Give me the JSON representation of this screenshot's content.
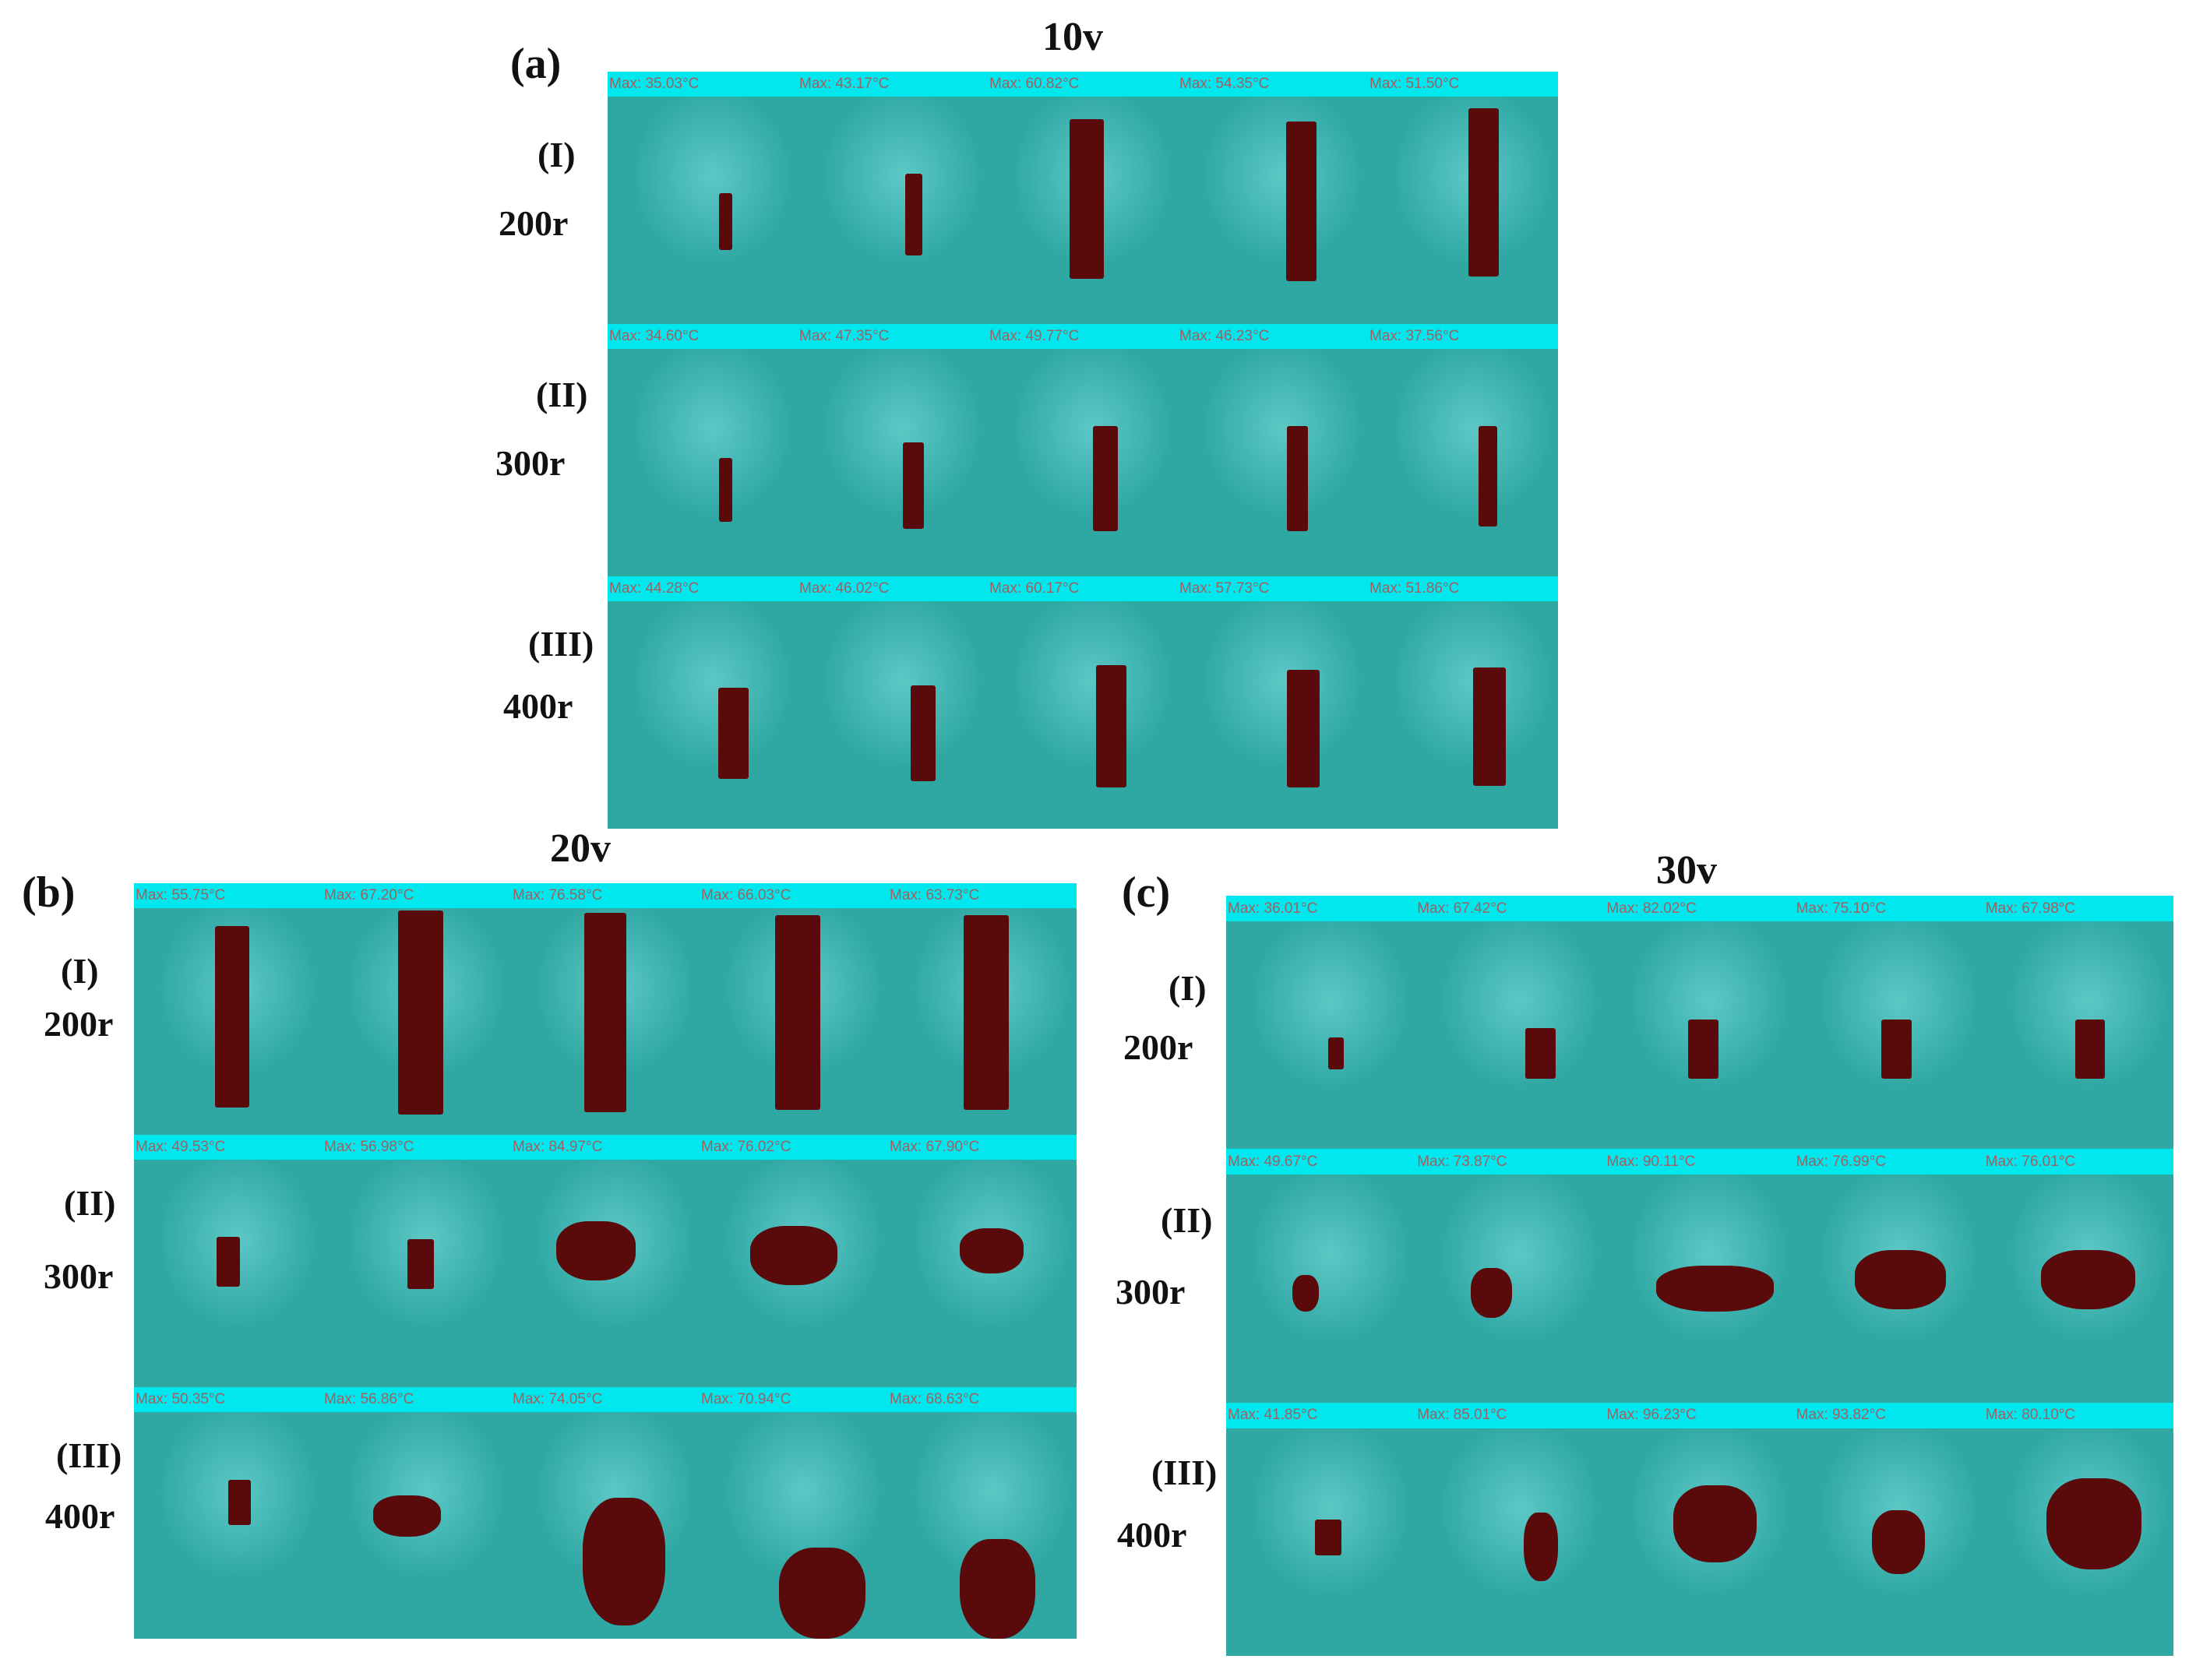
{
  "figure": {
    "panels": [
      {
        "letter": "(a)",
        "voltage": "10v",
        "rows": [
          {
            "roman": "(I)",
            "speed": "200r",
            "max_temps": [
              "Max: 35.03°C",
              "Max: 43.17°C",
              "Max: 60.82°C",
              "Max: 54.35°C",
              "Max: 51.50°C"
            ]
          },
          {
            "roman": "(II)",
            "speed": "300r",
            "max_temps": [
              "Max: 34.60°C",
              "Max: 47.35°C",
              "Max: 49.77°C",
              "Max: 46.23°C",
              "Max: 37.56°C"
            ]
          },
          {
            "roman": "(III)",
            "speed": "400r",
            "max_temps": [
              "Max: 44.28°C",
              "Max: 46.02°C",
              "Max: 60.17°C",
              "Max: 57.73°C",
              "Max: 51.86°C"
            ]
          }
        ]
      },
      {
        "letter": "(b)",
        "voltage": "20v",
        "rows": [
          {
            "roman": "(I)",
            "speed": "200r",
            "max_temps": [
              "Max: 55.75°C",
              "Max: 67.20°C",
              "Max: 76.58°C",
              "Max: 66.03°C",
              "Max: 63.73°C"
            ]
          },
          {
            "roman": "(II)",
            "speed": "300r",
            "max_temps": [
              "Max: 49.53°C",
              "Max: 56.98°C",
              "Max: 84.97°C",
              "Max: 76.02°C",
              "Max: 67.90°C"
            ]
          },
          {
            "roman": "(III)",
            "speed": "400r",
            "max_temps": [
              "Max: 50.35°C",
              "Max: 56.86°C",
              "Max: 74.05°C",
              "Max: 70.94°C",
              "Max: 68.63°C"
            ]
          }
        ]
      },
      {
        "letter": "(c)",
        "voltage": "30v",
        "rows": [
          {
            "roman": "(I)",
            "speed": "200r",
            "max_temps": [
              "Max: 36.01°C",
              "Max: 67.42°C",
              "Max: 82.02°C",
              "Max: 75.10°C",
              "Max: 67.98°C"
            ]
          },
          {
            "roman": "(II)",
            "speed": "300r",
            "max_temps": [
              "Max: 49.67°C",
              "Max: 73.87°C",
              "Max: 90.11°C",
              "Max: 76.99°C",
              "Max: 76.01°C"
            ]
          },
          {
            "roman": "(III)",
            "speed": "400r",
            "max_temps": [
              "Max: 41.85°C",
              "Max: 85.01°C",
              "Max: 96.23°C",
              "Max: 93.82°C",
              "Max: 80.10°C"
            ]
          }
        ]
      }
    ],
    "colors": {
      "header_strip": "#00e8ee",
      "thermal_background": "#2fa8a4",
      "thermal_glow": "#5cc8c6",
      "hotspot": "#5a0a0a",
      "header_text": "#a06060"
    }
  }
}
